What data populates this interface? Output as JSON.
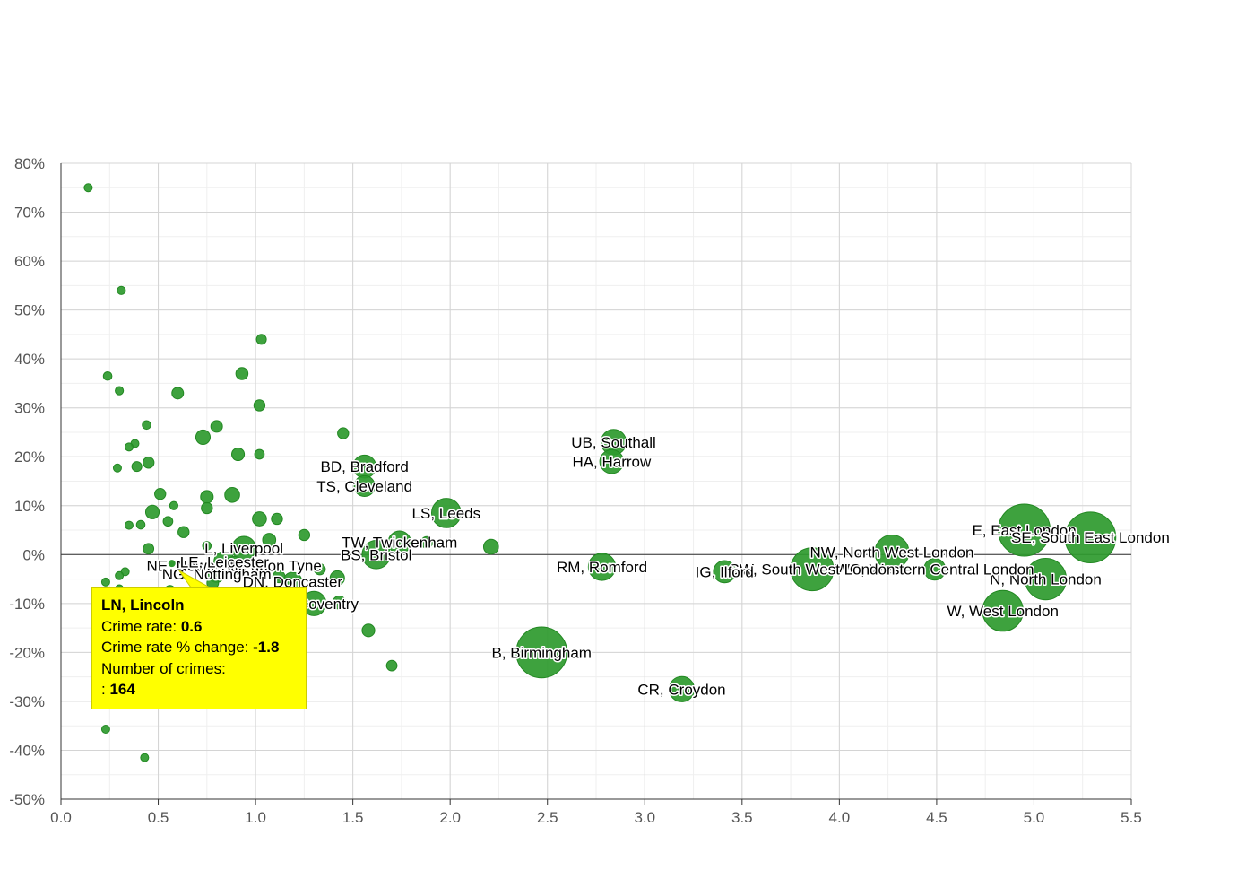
{
  "chart_data": {
    "type": "scatter",
    "title": "",
    "xlabel": "",
    "ylabel": "",
    "xlim": [
      0,
      5.5
    ],
    "ylim": [
      -50,
      80
    ],
    "x_ticks": [
      "0.0",
      "0.5",
      "1.0",
      "1.5",
      "2.0",
      "2.5",
      "3.0",
      "3.5",
      "4.0",
      "4.5",
      "5.0",
      "5.5"
    ],
    "y_ticks": [
      "80%",
      "70%",
      "60%",
      "50%",
      "40%",
      "30%",
      "20%",
      "10%",
      "0%",
      "-10%",
      "-20%",
      "-30%",
      "-40%",
      "-50%"
    ],
    "grid": true,
    "bubble_color": "#2e9a2e",
    "points": [
      {
        "label": "E, East London",
        "x": 4.95,
        "y": 5,
        "size": 22000
      },
      {
        "label": "SE, South East London",
        "x": 5.29,
        "y": 3.5,
        "size": 21000
      },
      {
        "label": "N, North London",
        "x": 5.06,
        "y": -5,
        "size": 14000
      },
      {
        "label": "W, West London",
        "x": 4.84,
        "y": -11.5,
        "size": 13500
      },
      {
        "label": "NW, North West London",
        "x": 4.27,
        "y": 0.5,
        "size": 9500
      },
      {
        "label": "WC, Western Central London",
        "x": 4.49,
        "y": -3,
        "size": 3800
      },
      {
        "label": "SW, South West London",
        "x": 3.86,
        "y": -3,
        "size": 15000
      },
      {
        "label": "IG, Ilford",
        "x": 3.41,
        "y": -3.5,
        "size": 4000
      },
      {
        "label": "CR, Croydon",
        "x": 3.19,
        "y": -27.5,
        "size": 5200
      },
      {
        "label": "RM, Romford",
        "x": 2.78,
        "y": -2.5,
        "size": 6000
      },
      {
        "label": "UB, Southall",
        "x": 2.84,
        "y": 23,
        "size": 5200
      },
      {
        "label": "HA, Harrow",
        "x": 2.83,
        "y": 19,
        "size": 4600
      },
      {
        "label": "B, Birmingham",
        "x": 2.47,
        "y": -20,
        "size": 21000
      },
      {
        "label": "LS, Leeds",
        "x": 1.98,
        "y": 8.5,
        "size": 7000
      },
      {
        "label": "BD, Bradford",
        "x": 1.56,
        "y": 18,
        "size": 4300
      },
      {
        "label": "TS, Cleveland",
        "x": 1.56,
        "y": 14,
        "size": 3500
      },
      {
        "label": "TW, Twickenham",
        "x": 1.74,
        "y": 2.5,
        "size": 4200
      },
      {
        "label": "BS, Bristol",
        "x": 1.62,
        "y": 0,
        "size": 6500
      },
      {
        "label": "L, Liverpool",
        "x": 0.94,
        "y": 1.3,
        "size": 4600
      },
      {
        "label": "NE, Newcastle upon Tyne",
        "x": 0.89,
        "y": -2.2,
        "size": 2600
      },
      {
        "label": "LE, Leicester",
        "x": 0.84,
        "y": -1.5,
        "size": 3600
      },
      {
        "label": "NG, Nottingham",
        "x": 0.8,
        "y": -4,
        "size": 2200
      },
      {
        "label": "DN, Doncaster",
        "x": 1.19,
        "y": -5.5,
        "size": 2800
      },
      {
        "label": "CV, Coventry",
        "x": 1.3,
        "y": -10,
        "size": 4800
      },
      {
        "label": "LN, Lincoln",
        "x": 0.57,
        "y": -1.8,
        "size": 650
      },
      {
        "label": "",
        "x": 0.14,
        "y": 75,
        "size": 300
      },
      {
        "label": "",
        "x": 0.31,
        "y": 54,
        "size": 550
      },
      {
        "label": "",
        "x": 1.03,
        "y": 44,
        "size": 800
      },
      {
        "label": "",
        "x": 0.24,
        "y": 36.5,
        "size": 600
      },
      {
        "label": "",
        "x": 0.93,
        "y": 37,
        "size": 1200
      },
      {
        "label": "",
        "x": 0.3,
        "y": 33.5,
        "size": 550
      },
      {
        "label": "",
        "x": 0.6,
        "y": 33,
        "size": 1100
      },
      {
        "label": "",
        "x": 1.02,
        "y": 30.5,
        "size": 1000
      },
      {
        "label": "",
        "x": 0.44,
        "y": 26.5,
        "size": 600
      },
      {
        "label": "",
        "x": 0.8,
        "y": 26.2,
        "size": 1100
      },
      {
        "label": "",
        "x": 0.73,
        "y": 24,
        "size": 1700
      },
      {
        "label": "",
        "x": 1.45,
        "y": 24.8,
        "size": 1000
      },
      {
        "label": "",
        "x": 0.38,
        "y": 22.7,
        "size": 500
      },
      {
        "label": "",
        "x": 0.35,
        "y": 22,
        "size": 500
      },
      {
        "label": "",
        "x": 0.91,
        "y": 20.5,
        "size": 1300
      },
      {
        "label": "",
        "x": 1.02,
        "y": 20.5,
        "size": 750
      },
      {
        "label": "",
        "x": 0.45,
        "y": 18.8,
        "size": 1000
      },
      {
        "label": "",
        "x": 0.39,
        "y": 18,
        "size": 800
      },
      {
        "label": "",
        "x": 0.29,
        "y": 17.7,
        "size": 450
      },
      {
        "label": "",
        "x": 0.88,
        "y": 12.2,
        "size": 1800
      },
      {
        "label": "",
        "x": 0.75,
        "y": 11.8,
        "size": 1300
      },
      {
        "label": "",
        "x": 0.51,
        "y": 12.4,
        "size": 1000
      },
      {
        "label": "",
        "x": 0.58,
        "y": 10,
        "size": 550
      },
      {
        "label": "",
        "x": 0.75,
        "y": 9.5,
        "size": 1000
      },
      {
        "label": "",
        "x": 0.47,
        "y": 8.7,
        "size": 1500
      },
      {
        "label": "",
        "x": 1.02,
        "y": 7.3,
        "size": 1600
      },
      {
        "label": "",
        "x": 1.11,
        "y": 7.3,
        "size": 1000
      },
      {
        "label": "",
        "x": 0.55,
        "y": 6.8,
        "size": 750
      },
      {
        "label": "",
        "x": 0.41,
        "y": 6.1,
        "size": 600
      },
      {
        "label": "",
        "x": 0.35,
        "y": 6.0,
        "size": 500
      },
      {
        "label": "",
        "x": 0.63,
        "y": 4.6,
        "size": 1000
      },
      {
        "label": "",
        "x": 1.25,
        "y": 4.0,
        "size": 1000
      },
      {
        "label": "",
        "x": 1.07,
        "y": 3.0,
        "size": 1400
      },
      {
        "label": "",
        "x": 0.45,
        "y": 1.2,
        "size": 900
      },
      {
        "label": "",
        "x": 0.75,
        "y": 1.8,
        "size": 600
      },
      {
        "label": "",
        "x": 1.88,
        "y": 2.5,
        "size": 1100
      },
      {
        "label": "",
        "x": 2.21,
        "y": 1.6,
        "size": 1800
      },
      {
        "label": "",
        "x": 1.42,
        "y": -4.8,
        "size": 1700
      },
      {
        "label": "",
        "x": 1.33,
        "y": -3,
        "size": 1000
      },
      {
        "label": "",
        "x": 1.12,
        "y": -4.5,
        "size": 1200
      },
      {
        "label": "",
        "x": 1.43,
        "y": -9.8,
        "size": 1400
      },
      {
        "label": "",
        "x": 0.33,
        "y": -3.5,
        "size": 450
      },
      {
        "label": "",
        "x": 0.3,
        "y": -4.3,
        "size": 450
      },
      {
        "label": "",
        "x": 0.23,
        "y": -5.6,
        "size": 450
      },
      {
        "label": "",
        "x": 0.3,
        "y": -7,
        "size": 450
      },
      {
        "label": "",
        "x": 0.56,
        "y": -7.4,
        "size": 900
      },
      {
        "label": "",
        "x": 0.78,
        "y": -5.8,
        "size": 1100
      },
      {
        "label": "",
        "x": 1.21,
        "y": -15.7,
        "size": 600
      },
      {
        "label": "",
        "x": 1.58,
        "y": -15.5,
        "size": 1300
      },
      {
        "label": "",
        "x": 1.7,
        "y": -22.7,
        "size": 900
      },
      {
        "label": "",
        "x": 0.23,
        "y": -35.7,
        "size": 450
      },
      {
        "label": "",
        "x": 0.43,
        "y": -41.5,
        "size": 400
      }
    ],
    "tooltip": {
      "title": "LN, Lincoln",
      "rate_label": "Crime rate:",
      "rate_value": "0.6",
      "change_label": "Crime rate % change:",
      "change_value": "-1.8",
      "count_label": "Number of crimes:",
      "count_prefix": ":",
      "count_value": "164"
    }
  }
}
